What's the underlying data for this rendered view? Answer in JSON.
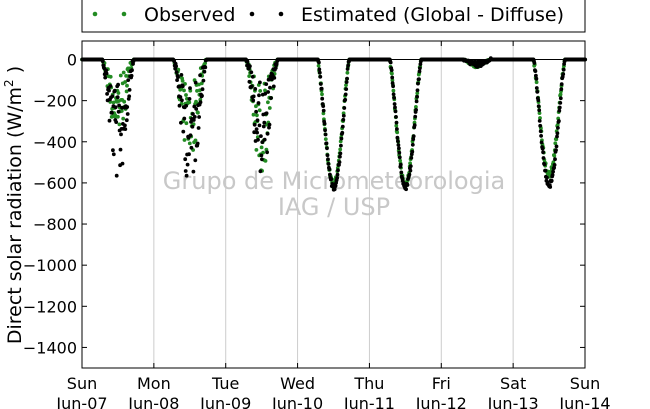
{
  "chart_data": {
    "type": "scatter",
    "title": "",
    "ylabel": "Direct solar radiation (W/m",
    "ylabel_superscript": "2",
    "ylabel_suffix": " )",
    "ylim": [
      -1500,
      90
    ],
    "yticks": [
      0,
      -200,
      -400,
      -600,
      -800,
      -1000,
      -1200,
      -1400
    ],
    "ytick_labels": [
      "0",
      "−200",
      "−400",
      "−600",
      "−800",
      "−1000",
      "−1200",
      "−1400"
    ],
    "xlim": [
      0,
      7
    ],
    "xticks": [
      0,
      1,
      2,
      3,
      4,
      5,
      6,
      7
    ],
    "xtick_labels": [
      [
        "Sun",
        "Jun-07"
      ],
      [
        "Mon",
        "Jun-08"
      ],
      [
        "Tue",
        "Jun-09"
      ],
      [
        "Wed",
        "Jun-10"
      ],
      [
        "Thu",
        "Jun-11"
      ],
      [
        "Fri",
        "Jun-12"
      ],
      [
        "Sat",
        "Jun-13"
      ],
      [
        "Sun",
        "Jun-14"
      ]
    ],
    "grid": "vertical",
    "zero_line": true,
    "legend_placement": "top",
    "watermark": [
      "Grupo de Micrometeorologia",
      "IAG / USP"
    ],
    "days": [
      {
        "day": 0,
        "sunrise": 0.28,
        "sunset": 0.72,
        "peak_obs": -380,
        "peak_est": -600,
        "cloudy": true
      },
      {
        "day": 1,
        "sunrise": 0.27,
        "sunset": 0.73,
        "peak_obs": -500,
        "peak_est": -620,
        "cloudy": true
      },
      {
        "day": 2,
        "sunrise": 0.28,
        "sunset": 0.72,
        "peak_obs": -550,
        "peak_est": -560,
        "cloudy": true
      },
      {
        "day": 3,
        "sunrise": 0.28,
        "sunset": 0.72,
        "peak_obs": -610,
        "peak_est": -620,
        "cloudy": false
      },
      {
        "day": 4,
        "sunrise": 0.28,
        "sunset": 0.72,
        "peak_obs": -610,
        "peak_est": -620,
        "cloudy": false
      },
      {
        "day": 5,
        "sunrise": 0.3,
        "sunset": 0.7,
        "peak_obs": -40,
        "peak_est": -40,
        "cloudy": true
      },
      {
        "day": 6,
        "sunrise": 0.28,
        "sunset": 0.72,
        "peak_obs": -560,
        "peak_est": -610,
        "cloudy": false
      }
    ],
    "series": [
      {
        "name": "Observed",
        "color": "#228b22"
      },
      {
        "name": "Estimated (Global - Diffuse)",
        "color": "#000000"
      }
    ]
  }
}
